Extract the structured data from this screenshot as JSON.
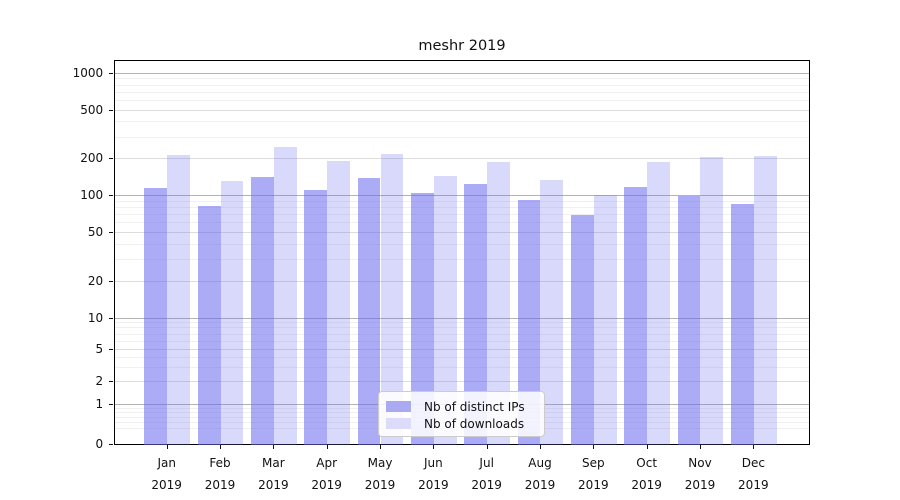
{
  "title": "meshr 2019",
  "chart_data": {
    "type": "bar",
    "title": "meshr 2019",
    "months": [
      "Jan",
      "Feb",
      "Mar",
      "Apr",
      "May",
      "Jun",
      "Jul",
      "Aug",
      "Sep",
      "Oct",
      "Nov",
      "Dec"
    ],
    "year": "2019",
    "categories": [
      "Jan 2019",
      "Feb 2019",
      "Mar 2019",
      "Apr 2019",
      "May 2019",
      "Jun 2019",
      "Jul 2019",
      "Aug 2019",
      "Sep 2019",
      "Oct 2019",
      "Nov 2019",
      "Dec 2019"
    ],
    "series": [
      {
        "name": "Nb of distinct IPs",
        "color": "rgba(102,102,238,0.55)",
        "legend_color": "#aaaaf3",
        "values": [
          117,
          84,
          145,
          112,
          140,
          106,
          125,
          94,
          71,
          118,
          100,
          86
        ]
      },
      {
        "name": "Nb of downloads",
        "color": "rgba(102,102,238,0.25)",
        "legend_color": "#dcdcfa",
        "values": [
          216,
          133,
          251,
          193,
          220,
          147,
          192,
          135,
          102,
          190,
          208,
          212
        ]
      }
    ],
    "xlabel": "",
    "ylabel": "",
    "yscale": "log (symlog near zero)",
    "yticks": [
      0,
      1,
      2,
      5,
      10,
      20,
      50,
      100,
      200,
      500,
      1000
    ],
    "ylim": [
      0,
      1260
    ],
    "grid": true,
    "legend_position": "lower center"
  },
  "colors": {
    "major_grid": "#b3b3b3",
    "mid_grid": "#dcdcdc",
    "minor_grid": "#f0f0f0",
    "spine": "#000000",
    "bar_base": "#6666ee",
    "text": "#111111"
  }
}
